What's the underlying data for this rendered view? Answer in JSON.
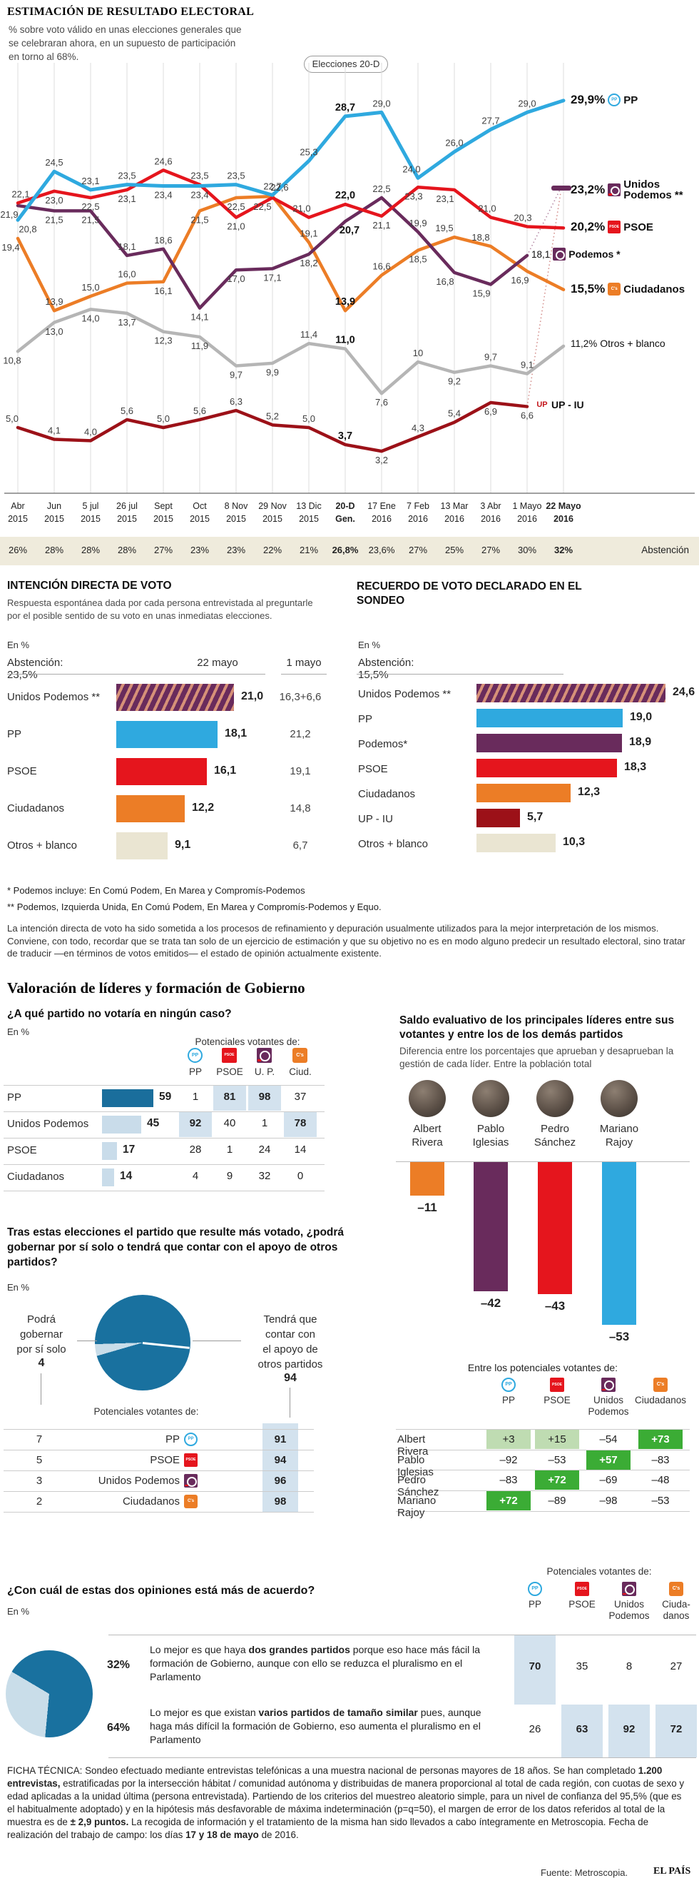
{
  "brand": "EL PAÍS",
  "fuente": "Fuente: Metroscopia.",
  "colors": {
    "pp": "#2FA9DF",
    "psoe": "#E5151D",
    "podemos": "#692B5C",
    "ciudadanos": "#EC7D26",
    "otros": "#B5B5B5",
    "upiu": "#9C1118",
    "stripe": "#D69078",
    "beige_bar": "#EAE5D2",
    "band": "#EFEBDC",
    "hl": "#D3E2EE",
    "dark_blue_bar": "#1A6E9C",
    "light_blue_bar": "#C9DCEA",
    "green": "#3BAC35",
    "light_green": "#BFDCB2",
    "pie_dark": "#19719F",
    "pie_light": "#C9DDE9"
  },
  "chart_data": [
    {
      "id": "estimacion",
      "type": "line",
      "title": "ESTIMACIÓN DE RESULTADO ELECTORAL",
      "subtitle": "% sobre voto válido en unas elecciones generales que se celebraran ahora, en un supuesto de participación en torno al 68%.",
      "pill": "Elecciones 20-D",
      "x": [
        [
          "Abr",
          "2015"
        ],
        [
          "Jun",
          "2015"
        ],
        [
          "5 jul",
          "2015"
        ],
        [
          "26 jul",
          "2015"
        ],
        [
          "Sept",
          "2015"
        ],
        [
          "Oct",
          "2015"
        ],
        [
          "8 Nov",
          "2015"
        ],
        [
          "29 Nov",
          "2015"
        ],
        [
          "13 Dic",
          "2015"
        ],
        [
          "20-D",
          "Gen."
        ],
        [
          "17 Ene",
          "2016"
        ],
        [
          "7 Feb",
          "2016"
        ],
        [
          "13 Mar",
          "2016"
        ],
        [
          "3 Abr",
          "2016"
        ],
        [
          "1 Mayo",
          "2016"
        ],
        [
          "22 Mayo",
          "2016"
        ]
      ],
      "abstencion": {
        "label": "Abstención",
        "values": [
          "26%",
          "28%",
          "28%",
          "28%",
          "27%",
          "23%",
          "23%",
          "22%",
          "21%",
          "26,8%",
          "23,6%",
          "27%",
          "25%",
          "27%",
          "30%",
          "32%"
        ]
      },
      "series": [
        {
          "name": "PP",
          "color_key": "pp",
          "values": [
            "20,8",
            "24,5",
            "23,1",
            "23,5",
            "23,4",
            "23,4",
            "23,5",
            "22,7",
            "25,3",
            "28,7",
            "29,0",
            "24,0",
            "26,0",
            "27,7",
            "29,0",
            "29,9"
          ]
        },
        {
          "name": "PSOE",
          "color_key": "psoe",
          "values": [
            "22,1",
            "23,0",
            "22,5",
            "23,1",
            "24,6",
            "23,5",
            "21,0",
            "22,5",
            "21,0",
            "22,0",
            "21,1",
            "23,3",
            "23,1",
            "21,0",
            "20,3",
            "20,2"
          ]
        },
        {
          "name": "Podemos",
          "color_key": "podemos",
          "values": [
            "21,9",
            "21,5",
            "21,5",
            "18,1",
            "18,6",
            "14,1",
            "17,0",
            "17,1",
            "18,2",
            "20,7",
            "22,5",
            "19,9",
            "16,8",
            "15,9",
            "18,1",
            null
          ]
        },
        {
          "name": "Ciudadanos",
          "color_key": "ciudadanos",
          "values": [
            "19,4",
            "13,9",
            "15,0",
            "16,0",
            "16,1",
            "21,5",
            "22,5",
            "22,6",
            "19,1",
            "13,9",
            "16,6",
            "18,5",
            "19,5",
            "18,8",
            "16,9",
            "15,5"
          ]
        },
        {
          "name": "Otros + blanco",
          "color_key": "otros",
          "values": [
            "10,8",
            "13,0",
            "14,0",
            "13,7",
            "12,3",
            "11,9",
            "9,7",
            "9,9",
            "11,4",
            "11,0",
            "7,6",
            "10",
            "9,2",
            "9,7",
            "9,1",
            "11,2"
          ]
        },
        {
          "name": "UP - IU",
          "color_key": "upiu",
          "values": [
            "5,0",
            "4,1",
            "4,0",
            "5,6",
            "5,0",
            "5,6",
            "6,3",
            "5,2",
            "5,0",
            "3,7",
            "3,2",
            "4,3",
            "5,4",
            "6,9",
            "6,6",
            null
          ]
        },
        {
          "name": "Unidos Podemos",
          "color_key": "podemos",
          "values": [
            null,
            null,
            null,
            null,
            null,
            null,
            null,
            null,
            null,
            null,
            null,
            null,
            null,
            null,
            null,
            "23,2"
          ]
        }
      ],
      "legend": [
        {
          "value": "29,9%",
          "label": "PP",
          "icon": "pp-logo"
        },
        {
          "value": "23,2%",
          "label": "Unidos Podemos **",
          "icon": "unidos-podemos-logo"
        },
        {
          "value": "20,2%",
          "label": "PSOE",
          "icon": "psoe-logo"
        },
        {
          "value": "18,1",
          "label": "Podemos *",
          "icon": "podemos-logo"
        },
        {
          "value": "15,5%",
          "label": "Ciudadanos",
          "icon": "ciudadanos-logo"
        },
        {
          "value": "11,2%",
          "label": "Otros + blanco",
          "icon": null
        },
        {
          "value": null,
          "label": "UP - IU",
          "icon": "upiu-logo"
        }
      ]
    },
    {
      "id": "idv",
      "type": "bar",
      "title": "INTENCIÓN DIRECTA DE VOTO",
      "desc": "Respuesta espontánea dada por cada persona entrevistada al preguntarle por el posible sentido de su voto en unas inmediatas elecciones.",
      "en_pct": "En %",
      "abstencion": "Abstención: 23,5%",
      "col_now": "22 mayo",
      "col_prev": "1 mayo",
      "rows": [
        {
          "label": "Unidos Podemos **",
          "style": "hatch",
          "value": "21,0",
          "prev": "16,3+6,6"
        },
        {
          "label": "PP",
          "style": "pp",
          "value": "18,1",
          "prev": "21,2"
        },
        {
          "label": "PSOE",
          "style": "psoe",
          "value": "16,1",
          "prev": "19,1"
        },
        {
          "label": "Ciudadanos",
          "style": "ciudadanos",
          "value": "12,2",
          "prev": "14,8"
        },
        {
          "label": "Otros + blanco",
          "style": "beige",
          "value": "9,1",
          "prev": "6,7"
        }
      ]
    },
    {
      "id": "recuerdo",
      "type": "bar",
      "title": "RECUERDO DE VOTO DECLARADO EN EL SONDEO",
      "en_pct": "En %",
      "abstencion": "Abstención: 15,5%",
      "rows": [
        {
          "label": "Unidos Podemos **",
          "style": "hatch",
          "value": "24,6"
        },
        {
          "label": "PP",
          "style": "pp",
          "value": "19,0"
        },
        {
          "label": "Podemos*",
          "style": "podemos",
          "value": "18,9"
        },
        {
          "label": "PSOE",
          "style": "psoe",
          "value": "18,3"
        },
        {
          "label": "Ciudadanos",
          "style": "ciudadanos",
          "value": "12,3"
        },
        {
          "label": "UP - IU",
          "style": "upiu",
          "value": "5,7"
        },
        {
          "label": "Otros + blanco",
          "style": "beige",
          "value": "10,3"
        }
      ]
    },
    {
      "id": "novote",
      "type": "table",
      "question": "¿A qué partido no votaría en ningún caso?",
      "en_pct": "En %",
      "header": "Potenciales votantes de:",
      "cols": [
        {
          "label": "PP",
          "icon": "pp-logo"
        },
        {
          "label": "PSOE",
          "icon": "psoe-logo"
        },
        {
          "label": "U. P.",
          "icon": "unidos-podemos-logo"
        },
        {
          "label": "Ciud.",
          "icon": "ciudadanos-logo"
        }
      ],
      "rows": [
        {
          "label": "PP",
          "value": "59",
          "bar": 59,
          "cells": [
            {
              "v": "1"
            },
            {
              "v": "81",
              "hl": true
            },
            {
              "v": "98",
              "hl": true
            },
            {
              "v": "37"
            }
          ]
        },
        {
          "label": "Unidos Podemos",
          "value": "45",
          "bar": 45,
          "cells": [
            {
              "v": "92",
              "hl": true
            },
            {
              "v": "40"
            },
            {
              "v": "1"
            },
            {
              "v": "78",
              "hl": true
            }
          ]
        },
        {
          "label": "PSOE",
          "value": "17",
          "bar": 17,
          "cells": [
            {
              "v": "28"
            },
            {
              "v": "1"
            },
            {
              "v": "24"
            },
            {
              "v": "14"
            }
          ]
        },
        {
          "label": "Ciudadanos",
          "value": "14",
          "bar": 14,
          "cells": [
            {
              "v": "4"
            },
            {
              "v": "9"
            },
            {
              "v": "32"
            },
            {
              "v": "0"
            }
          ]
        }
      ]
    },
    {
      "id": "gobernar",
      "type": "pie",
      "question": "Tras estas elecciones el partido que resulte más votado, ¿podrá gobernar por sí solo o tendrá que contar con el apoyo de otros partidos?",
      "en_pct": "En %",
      "slices": [
        {
          "label": "Podrá gobernar por sí solo",
          "value": "4",
          "pct": 4
        },
        {
          "label": "Tendrá que contar con el apoyo de otros partidos",
          "value": "94",
          "pct": 94
        }
      ],
      "header": "Potenciales votantes de:",
      "rows": [
        {
          "left": "7",
          "party": "PP",
          "icon": "pp-logo",
          "right": "91"
        },
        {
          "left": "5",
          "party": "PSOE",
          "icon": "psoe-logo",
          "right": "94"
        },
        {
          "left": "3",
          "party": "Unidos Podemos",
          "icon": "unidos-podemos-logo",
          "right": "96"
        },
        {
          "left": "2",
          "party": "Ciudadanos",
          "icon": "ciudadanos-logo",
          "right": "98"
        }
      ]
    },
    {
      "id": "saldo",
      "type": "bar",
      "title": "Saldo evaluativo de los principales líderes entre sus votantes y entre los de los demás partidos",
      "desc": "Diferencia entre los porcentajes que aprueban y desaprueban la gestión de cada líder. Entre la población total",
      "leaders": [
        {
          "name": "Albert Rivera",
          "lines": [
            "Albert",
            "Rivera"
          ],
          "value": -11,
          "label": "–11",
          "color_key": "ciudadanos"
        },
        {
          "name": "Pablo Iglesias",
          "lines": [
            "Pablo",
            "Iglesias"
          ],
          "value": -42,
          "label": "–42",
          "color_key": "podemos"
        },
        {
          "name": "Pedro Sánchez",
          "lines": [
            "Pedro",
            "Sánchez"
          ],
          "value": -43,
          "label": "–43",
          "color_key": "psoe"
        },
        {
          "name": "Mariano Rajoy",
          "lines": [
            "Mariano",
            "Rajoy"
          ],
          "value": -53,
          "label": "–53",
          "color_key": "pp"
        }
      ],
      "header": "Entre los potenciales votantes de:",
      "cols": [
        {
          "label": "PP",
          "icon": "pp-logo"
        },
        {
          "label": "PSOE",
          "icon": "psoe-logo"
        },
        {
          "label": "Unidos Podemos",
          "icon": "unidos-podemos-logo"
        },
        {
          "label": "Ciudadanos",
          "icon": "ciudadanos-logo"
        }
      ],
      "rows": [
        {
          "label": "Albert Rivera",
          "cells": [
            {
              "v": "+3",
              "s": "lg"
            },
            {
              "v": "+15",
              "s": "lg"
            },
            {
              "v": "–54"
            },
            {
              "v": "+73",
              "s": "g"
            }
          ]
        },
        {
          "label": "Pablo Iglesias",
          "cells": [
            {
              "v": "–92"
            },
            {
              "v": "–53"
            },
            {
              "v": "+57",
              "s": "g"
            },
            {
              "v": "–83"
            }
          ]
        },
        {
          "label": "Pedro Sánchez",
          "cells": [
            {
              "v": "–83"
            },
            {
              "v": "+72",
              "s": "g"
            },
            {
              "v": "–69"
            },
            {
              "v": "–48"
            }
          ]
        },
        {
          "label": "Mariano Rajoy",
          "cells": [
            {
              "v": "+72",
              "s": "g"
            },
            {
              "v": "–89"
            },
            {
              "v": "–98"
            },
            {
              "v": "–53"
            }
          ]
        }
      ]
    },
    {
      "id": "opinion",
      "type": "pie",
      "question": "¿Con cuál de estas dos opiniones está más de acuerdo?",
      "en_pct": "En %",
      "header": "Potenciales votantes de:",
      "cols": [
        {
          "label": "PP",
          "lines": [
            "PP"
          ],
          "icon": "pp-logo"
        },
        {
          "label": "PSOE",
          "lines": [
            "PSOE"
          ],
          "icon": "psoe-logo"
        },
        {
          "label": "Unidos Podemos",
          "lines": [
            "Unidos",
            "Podemos"
          ],
          "icon": "unidos-podemos-logo"
        },
        {
          "label": "Ciuda-danos",
          "lines": [
            "Ciuda-",
            "danos"
          ],
          "icon": "ciudadanos-logo"
        }
      ],
      "rows": [
        {
          "pct": "32%",
          "pct_num": 32,
          "text": [
            {
              "t": "Lo mejor es que haya "
            },
            {
              "t": "dos grandes partidos",
              "b": true
            },
            {
              "t": " porque eso hace más fácil la formación de Gobierno, aunque con ello se reduzca el pluralismo en el Parlamento"
            }
          ],
          "values": [
            {
              "v": "70",
              "hl": true
            },
            {
              "v": "35"
            },
            {
              "v": "8"
            },
            {
              "v": "27"
            }
          ]
        },
        {
          "pct": "64%",
          "pct_num": 64,
          "text": [
            {
              "t": "Lo mejor es que existan "
            },
            {
              "t": "varios partidos de tamaño similar",
              "b": true
            },
            {
              "t": " pues, aunque haga más difícil la formación de Gobierno, eso aumenta el pluralismo en el Parlamento"
            }
          ],
          "values": [
            {
              "v": "26"
            },
            {
              "v": "63",
              "hl": true
            },
            {
              "v": "92",
              "hl": true
            },
            {
              "v": "72",
              "hl": true
            }
          ]
        }
      ]
    }
  ],
  "footnotes": [
    "* Podemos incluye: En Comú Podem, En Marea y Compromís-Podemos",
    "** Podemos, Izquierda Unida, En Comú Podem, En Marea y Compromís-Podemos y Equo."
  ],
  "nota": "La intención directa de voto ha sido sometida a los procesos de refinamiento y depuración usualmente utilizados para la mejor interpretación de los mismos. Conviene, con todo, recordar que se trata tan solo de un ejercicio de estimación y que su objetivo no es en modo alguno predecir un resultado electoral, sino tratar de traducir —en términos de votos emitidos— el estado de opinión actualmente existente.",
  "section2_title": "Valoración de líderes y formación de Gobierno",
  "ficha": [
    {
      "t": "FICHA TÉCNICA: Sondeo efectuado mediante entrevistas telefónicas a una muestra nacional de personas mayores de 18 años. Se han completado "
    },
    {
      "t": "1.200 entrevistas,",
      "b": true
    },
    {
      "t": " estratificadas por la intersección hábitat / comunidad autónoma y distribuidas de manera proporcional al total de cada región, con cuotas de sexo y edad aplicadas a la unidad última (persona entrevistada). Partiendo de los criterios del muestreo aleatorio simple, para un nivel de confianza del 95,5% (que es el habitualmente adoptado) y en la hipótesis más desfavorable de máxima indeterminación (p=q=50), el margen de error de los datos referidos al total de la muestra es de "
    },
    {
      "t": "± 2,9 puntos.",
      "b": true
    },
    {
      "t": " La recogida de información y el tratamiento de la misma han sido llevados a cabo íntegramente en Metroscopia. Fecha de realización del trabajo de campo: los días "
    },
    {
      "t": "17 y 18 de mayo",
      "b": true
    },
    {
      "t": " de 2016."
    }
  ]
}
